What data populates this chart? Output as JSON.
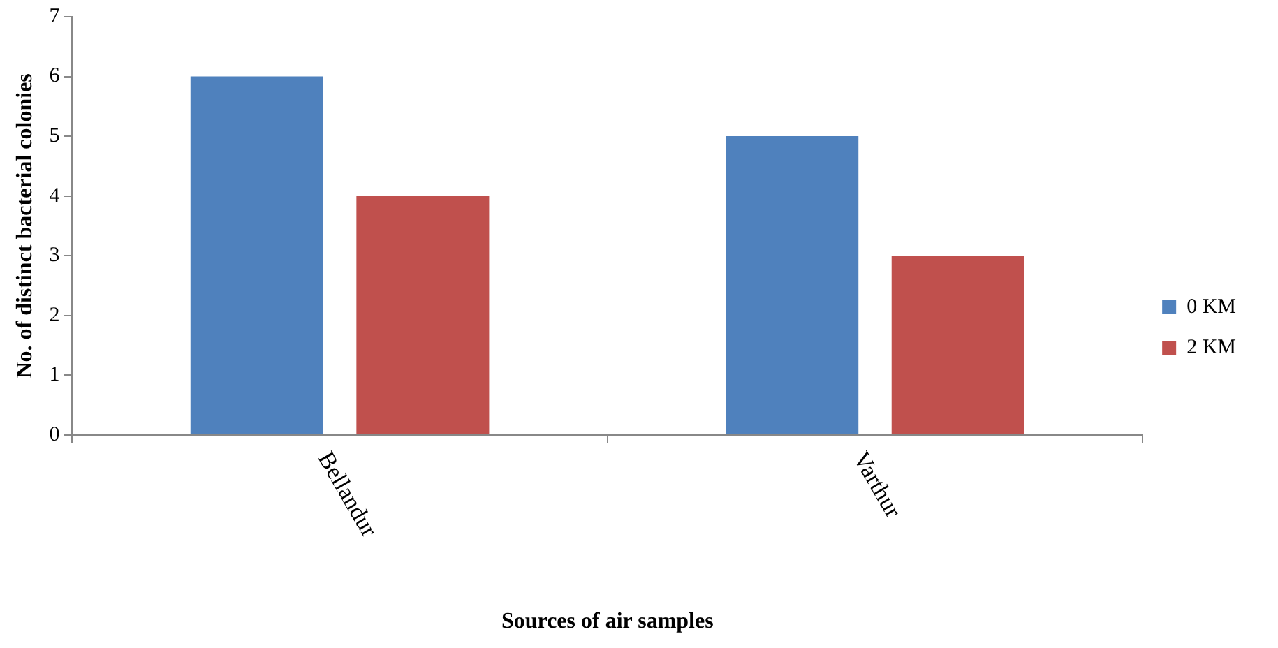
{
  "chart_data": {
    "type": "bar",
    "xlabel": "Sources of air samples",
    "ylabel": "No. of distinct bacterial colonies",
    "categories": [
      "Bellandur",
      "Varthur"
    ],
    "series": [
      {
        "name": "0 KM",
        "color": "#4f81bd",
        "values": [
          6,
          5
        ]
      },
      {
        "name": "2 KM",
        "color": "#c0504d",
        "values": [
          4,
          3
        ]
      }
    ],
    "ylim": [
      0,
      7
    ],
    "yticks": [
      0,
      1,
      2,
      3,
      4,
      5,
      6,
      7
    ],
    "grid": false,
    "legend": "right"
  }
}
